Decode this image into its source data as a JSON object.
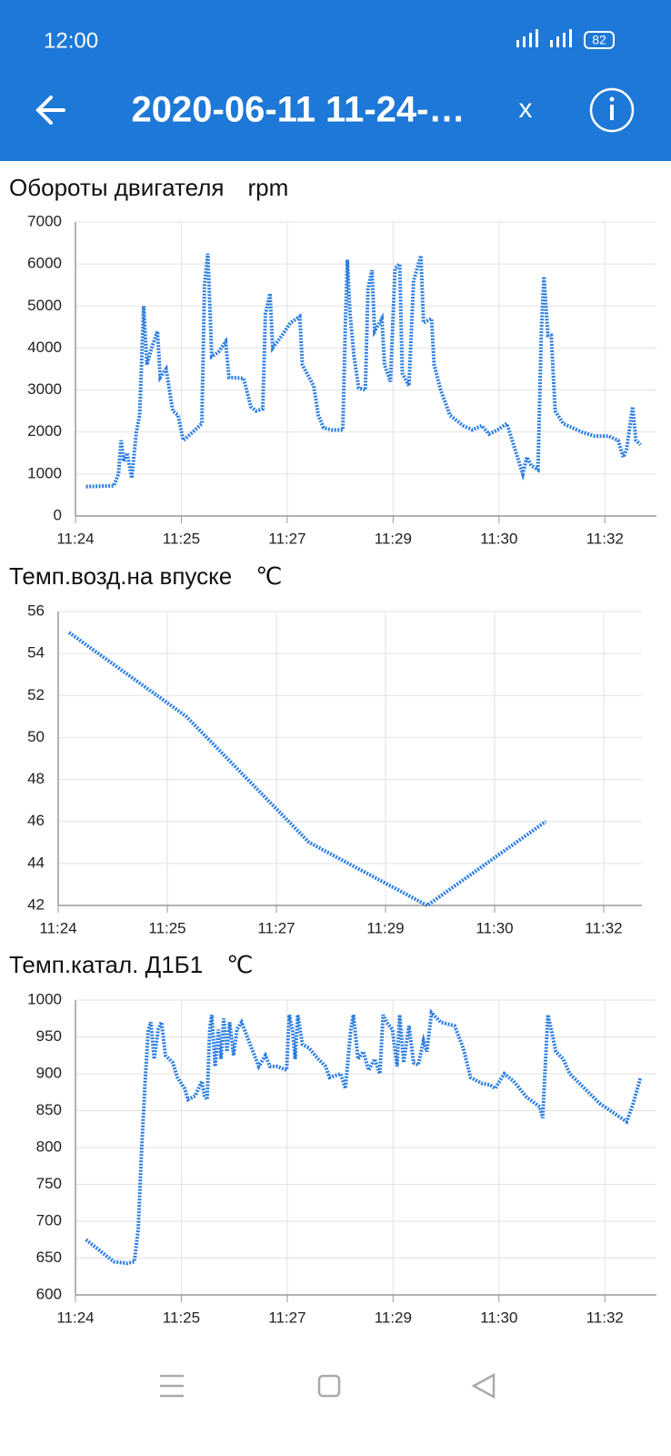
{
  "status_bar": {
    "time": "12:00",
    "battery": "82"
  },
  "app_bar": {
    "title": "2020-06-11 11-24-…",
    "close": "x"
  },
  "chart_data": [
    {
      "type": "line",
      "title": "Обороты двигателя",
      "unit": "rpm",
      "color": "#2a7de1",
      "grid": true,
      "xlim": [
        0,
        8.78
      ],
      "ylim": [
        0,
        7000
      ],
      "xticks": [
        {
          "value": 0,
          "label": "11:24"
        },
        {
          "value": 1.6,
          "label": "11:25"
        },
        {
          "value": 3.2,
          "label": "11:27"
        },
        {
          "value": 4.8,
          "label": "11:29"
        },
        {
          "value": 6.4,
          "label": "11:30"
        },
        {
          "value": 8.0,
          "label": "11:32"
        }
      ],
      "yticks": [
        0,
        1000,
        2000,
        3000,
        4000,
        5000,
        6000,
        7000
      ],
      "x": [
        0.16,
        0.58,
        0.65,
        0.69,
        0.73,
        0.78,
        0.85,
        0.92,
        0.97,
        1.03,
        1.08,
        1.15,
        1.24,
        1.28,
        1.37,
        1.47,
        1.55,
        1.63,
        1.74,
        1.91,
        1.95,
        2.0,
        2.06,
        2.16,
        2.27,
        2.32,
        2.54,
        2.65,
        2.73,
        2.83,
        2.87,
        2.94,
        2.98,
        3.12,
        3.25,
        3.39,
        3.43,
        3.53,
        3.6,
        3.67,
        3.75,
        3.87,
        4.04,
        4.08,
        4.11,
        4.15,
        4.21,
        4.28,
        4.38,
        4.42,
        4.48,
        4.52,
        4.63,
        4.67,
        4.76,
        4.83,
        4.9,
        4.94,
        5.04,
        5.11,
        5.22,
        5.26,
        5.38,
        5.42,
        5.52,
        5.66,
        5.86,
        6.0,
        6.14,
        6.25,
        6.38,
        6.52,
        6.62,
        6.76,
        6.82,
        6.89,
        6.99,
        7.04,
        7.08,
        7.14,
        7.19,
        7.25,
        7.37,
        7.65,
        7.85,
        8.06,
        8.2,
        8.28,
        8.33,
        8.42,
        8.47,
        8.54
      ],
      "values": [
        700,
        720,
        1000,
        1800,
        1300,
        1500,
        900,
        2000,
        2400,
        5000,
        3600,
        4000,
        4400,
        3300,
        3500,
        2500,
        2400,
        1800,
        1950,
        2200,
        5500,
        6250,
        3800,
        3900,
        4150,
        3300,
        3280,
        2600,
        2500,
        2550,
        4800,
        5300,
        4000,
        4300,
        4600,
        4750,
        3600,
        3300,
        3100,
        2400,
        2100,
        2050,
        2050,
        4600,
        6100,
        4800,
        3800,
        3050,
        3000,
        5400,
        5850,
        4400,
        4700,
        3600,
        3200,
        5900,
        6000,
        3400,
        3100,
        5600,
        6200,
        4600,
        4700,
        3600,
        3000,
        2400,
        2150,
        2050,
        2150,
        1950,
        2050,
        2200,
        1700,
        1000,
        1400,
        1200,
        1100,
        4400,
        5700,
        4300,
        4300,
        2500,
        2200,
        2000,
        1900,
        1900,
        1800,
        1400,
        1600,
        2600,
        1800,
        1700
      ]
    },
    {
      "type": "line",
      "title": "Темп.возд.на впуске",
      "unit": "℃",
      "color": "#2a7de1",
      "grid": true,
      "xlim": [
        0,
        8.56
      ],
      "ylim": [
        42,
        56
      ],
      "xticks": [
        {
          "value": 0,
          "label": "11:24"
        },
        {
          "value": 1.6,
          "label": "11:25"
        },
        {
          "value": 3.2,
          "label": "11:27"
        },
        {
          "value": 4.8,
          "label": "11:29"
        },
        {
          "value": 6.4,
          "label": "11:30"
        },
        {
          "value": 8.0,
          "label": "11:32"
        }
      ],
      "yticks": [
        42,
        44,
        46,
        48,
        50,
        52,
        54,
        56
      ],
      "x": [
        0.16,
        1.88,
        3.68,
        5.41,
        7.15
      ],
      "values": [
        55,
        51,
        45,
        42,
        46
      ]
    },
    {
      "type": "line",
      "title": "Темп.катал. Д1Б1",
      "unit": "℃",
      "color": "#2a7de1",
      "grid": true,
      "xlim": [
        0,
        8.78
      ],
      "ylim": [
        600,
        1000
      ],
      "xticks": [
        {
          "value": 0,
          "label": "11:24"
        },
        {
          "value": 1.6,
          "label": "11:25"
        },
        {
          "value": 3.2,
          "label": "11:27"
        },
        {
          "value": 4.8,
          "label": "11:29"
        },
        {
          "value": 6.4,
          "label": "11:30"
        },
        {
          "value": 8.0,
          "label": "11:32"
        }
      ],
      "yticks": [
        600,
        650,
        700,
        750,
        800,
        850,
        900,
        950,
        1000
      ],
      "x": [
        0.16,
        0.37,
        0.58,
        0.78,
        0.89,
        0.95,
        1.0,
        1.06,
        1.1,
        1.14,
        1.19,
        1.25,
        1.3,
        1.36,
        1.47,
        1.54,
        1.65,
        1.7,
        1.81,
        1.91,
        1.95,
        1.99,
        2.03,
        2.06,
        2.11,
        2.16,
        2.2,
        2.24,
        2.29,
        2.33,
        2.39,
        2.44,
        2.51,
        2.64,
        2.77,
        2.87,
        2.94,
        3.05,
        3.19,
        3.23,
        3.28,
        3.32,
        3.36,
        3.43,
        3.53,
        3.67,
        3.78,
        3.84,
        4.01,
        4.08,
        4.16,
        4.2,
        4.27,
        4.35,
        4.43,
        4.52,
        4.6,
        4.65,
        4.7,
        4.79,
        4.86,
        4.9,
        4.96,
        5.04,
        5.11,
        5.18,
        5.26,
        5.31,
        5.38,
        5.52,
        5.73,
        5.86,
        5.97,
        6.14,
        6.27,
        6.34,
        6.48,
        6.62,
        6.82,
        7.02,
        7.06,
        7.14,
        7.19,
        7.26,
        7.37,
        7.47,
        7.92,
        8.33,
        8.43,
        8.54
      ],
      "values": [
        675,
        660,
        645,
        643,
        645,
        690,
        800,
        900,
        960,
        970,
        920,
        960,
        970,
        925,
        915,
        895,
        880,
        865,
        870,
        890,
        870,
        865,
        960,
        980,
        910,
        960,
        920,
        975,
        930,
        970,
        925,
        960,
        970,
        940,
        910,
        925,
        910,
        910,
        905,
        980,
        960,
        920,
        980,
        940,
        935,
        920,
        910,
        895,
        900,
        880,
        960,
        980,
        920,
        930,
        905,
        920,
        900,
        980,
        970,
        960,
        910,
        980,
        915,
        965,
        915,
        912,
        945,
        930,
        983,
        970,
        965,
        935,
        895,
        887,
        885,
        880,
        900,
        890,
        868,
        855,
        840,
        980,
        960,
        930,
        920,
        900,
        860,
        835,
        860,
        895
      ]
    }
  ]
}
